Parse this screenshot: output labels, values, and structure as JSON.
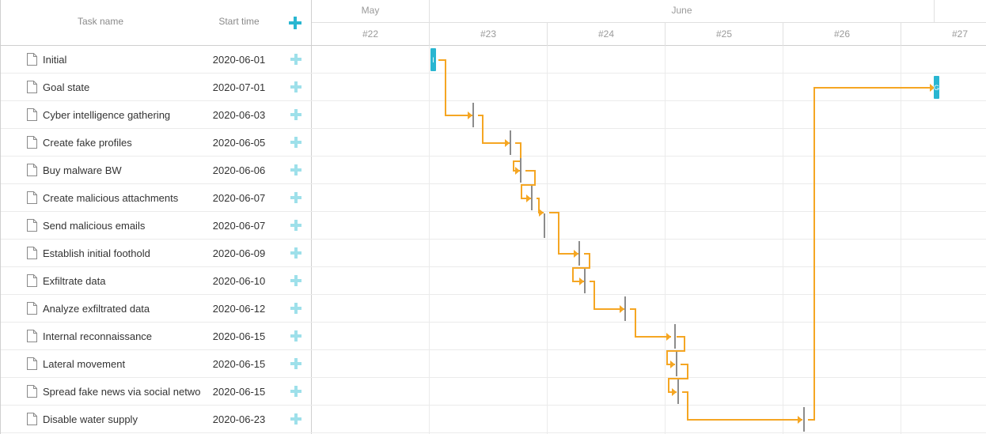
{
  "grid": {
    "header": {
      "task_name": "Task name",
      "start_time": "Start time",
      "add_icon": "plus-icon"
    },
    "rows": [
      {
        "name": "Initial",
        "start": "2020-06-01"
      },
      {
        "name": "Goal state",
        "start": "2020-07-01"
      },
      {
        "name": "Cyber intelligence gathering",
        "start": "2020-06-03"
      },
      {
        "name": "Create fake profiles",
        "start": "2020-06-05"
      },
      {
        "name": "Buy malware BW",
        "start": "2020-06-06"
      },
      {
        "name": "Create malicious attachments",
        "start": "2020-06-07"
      },
      {
        "name": "Send malicious emails",
        "start": "2020-06-07"
      },
      {
        "name": "Establish initial foothold",
        "start": "2020-06-09"
      },
      {
        "name": "Exfiltrate data",
        "start": "2020-06-10"
      },
      {
        "name": "Analyze exfiltrated data",
        "start": "2020-06-12"
      },
      {
        "name": "Internal reconnaissance",
        "start": "2020-06-15"
      },
      {
        "name": "Lateral movement",
        "start": "2020-06-15"
      },
      {
        "name": "Spread fake news via social network",
        "start": "2020-06-15"
      },
      {
        "name": "Disable water supply",
        "start": "2020-06-23"
      }
    ]
  },
  "timeline": {
    "months": [
      "May",
      "June"
    ],
    "weeks": [
      "#22",
      "#23",
      "#24",
      "#25",
      "#26",
      "#27"
    ],
    "bars": [
      {
        "label": "I",
        "type": "task"
      },
      {
        "label": "G",
        "type": "task"
      }
    ]
  },
  "colors": {
    "link": "#f5a623",
    "task_bar": "#29b6d1",
    "milestone": "#8c8c8c",
    "add_icon": "#9ee0ea",
    "add_icon_header": "#29b6d1"
  }
}
